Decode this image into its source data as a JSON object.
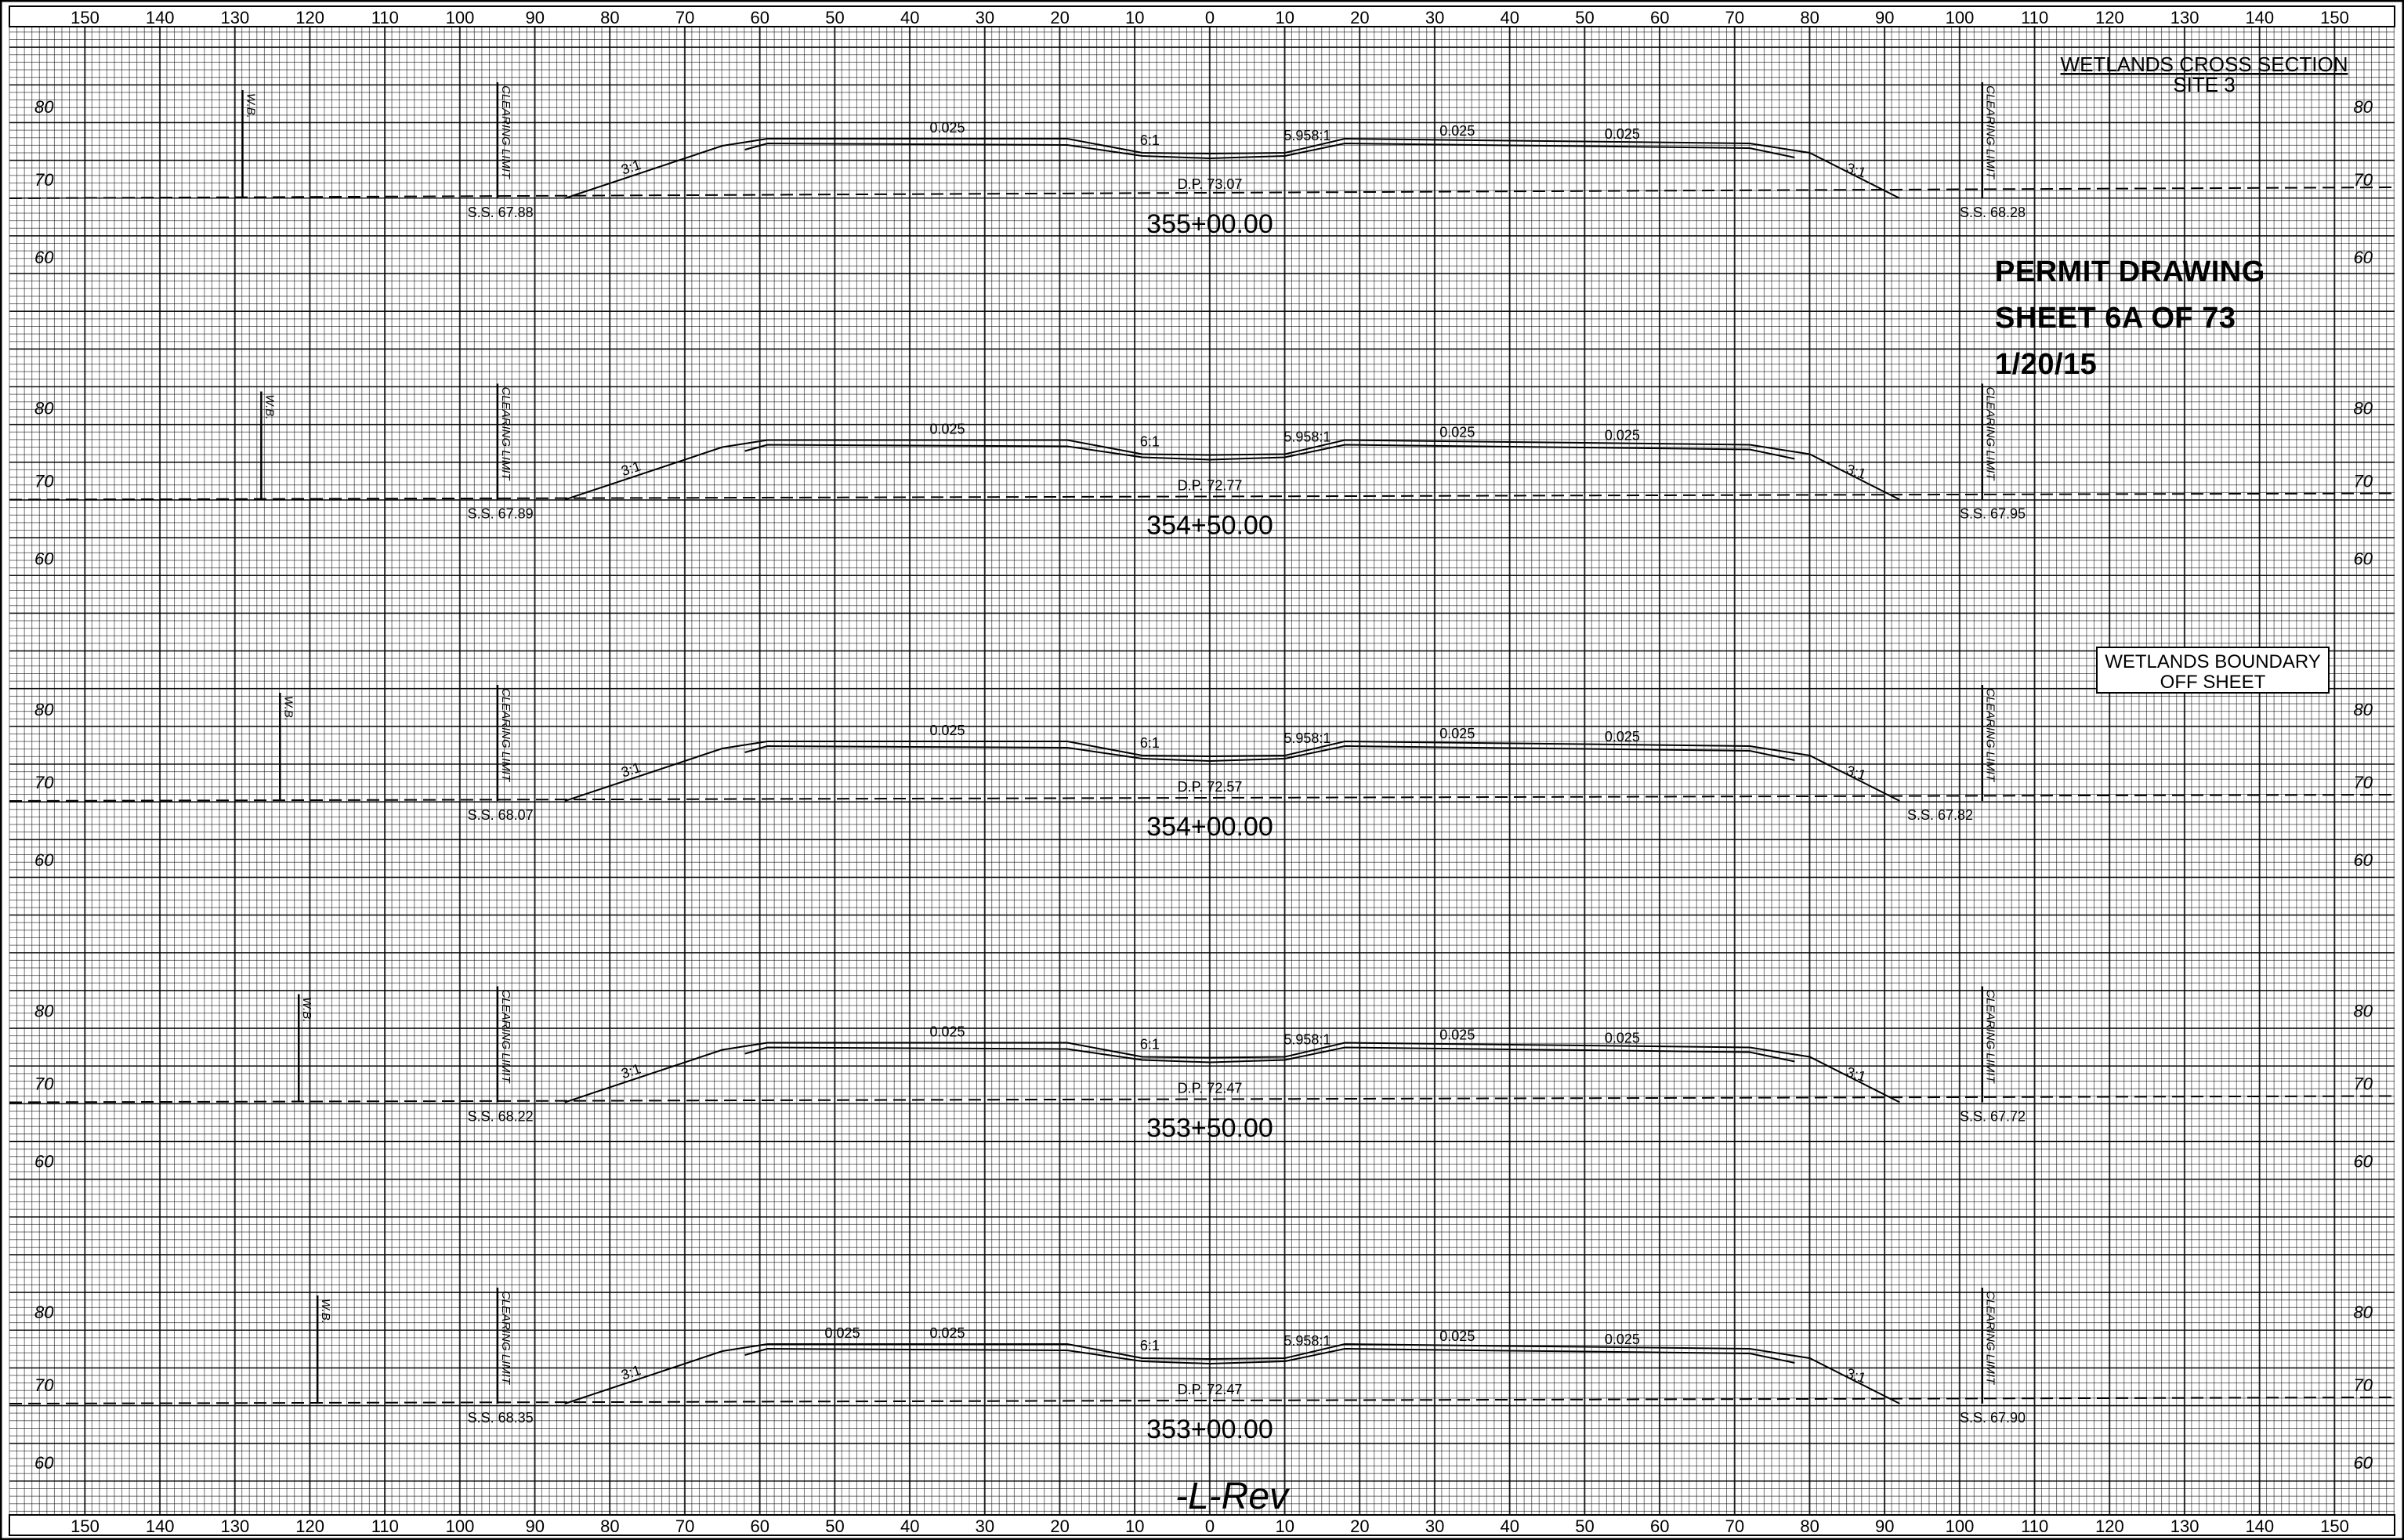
{
  "title": {
    "line1": "WETLANDS CROSS SECTION",
    "line2": "SITE 3"
  },
  "permit": {
    "line1": "PERMIT DRAWING",
    "line2": "SHEET 6A OF 73",
    "line3": "1/20/15"
  },
  "boundary_note": {
    "line1": "WETLANDS BOUNDARY",
    "line2": "OFF SHEET"
  },
  "alignment_label": "-L-Rev",
  "x_axis_labels": [
    "150",
    "140",
    "130",
    "120",
    "110",
    "100",
    "90",
    "80",
    "70",
    "60",
    "50",
    "40",
    "30",
    "20",
    "10",
    "0",
    "10",
    "20",
    "30",
    "40",
    "50",
    "60",
    "70",
    "80",
    "90",
    "100",
    "110",
    "120",
    "130",
    "140",
    "150"
  ],
  "elevation_labels": [
    "80",
    "70",
    "60"
  ],
  "slope_labels": {
    "cross_slope": "0.025",
    "fill_slope": "3:1",
    "ditch_left": "6:1",
    "ditch_right": "5.958:1"
  },
  "marker_labels": {
    "clearing_limit": "CLEARING LIMIT",
    "wetland_boundary": "W.B.",
    "dp_prefix": "D.P."
  },
  "sections": [
    {
      "station": "355+00.00",
      "dp": "73.07",
      "ss_left": "S.S. 67.88",
      "ss_right": "S.S. 68.28",
      "wetland_boundary": true,
      "extra_slope_label": false
    },
    {
      "station": "354+50.00",
      "dp": "72.77",
      "ss_left": "S.S. 67.89",
      "ss_right": "S.S. 67.95",
      "wetland_boundary": true,
      "extra_slope_label": false
    },
    {
      "station": "354+00.00",
      "dp": "72.57",
      "ss_left": "S.S. 68.07",
      "ss_right": "S.S. 67.82",
      "wetland_boundary": true,
      "extra_slope_label": false
    },
    {
      "station": "353+50.00",
      "dp": "72.47",
      "ss_left": "S.S. 68.22",
      "ss_right": "S.S. 67.72",
      "wetland_boundary": true,
      "extra_slope_label": false
    },
    {
      "station": "353+00.00",
      "dp": "72.47",
      "ss_left": "S.S. 68.35",
      "ss_right": "S.S. 67.90",
      "wetland_boundary": true,
      "extra_slope_label": true
    }
  ]
}
